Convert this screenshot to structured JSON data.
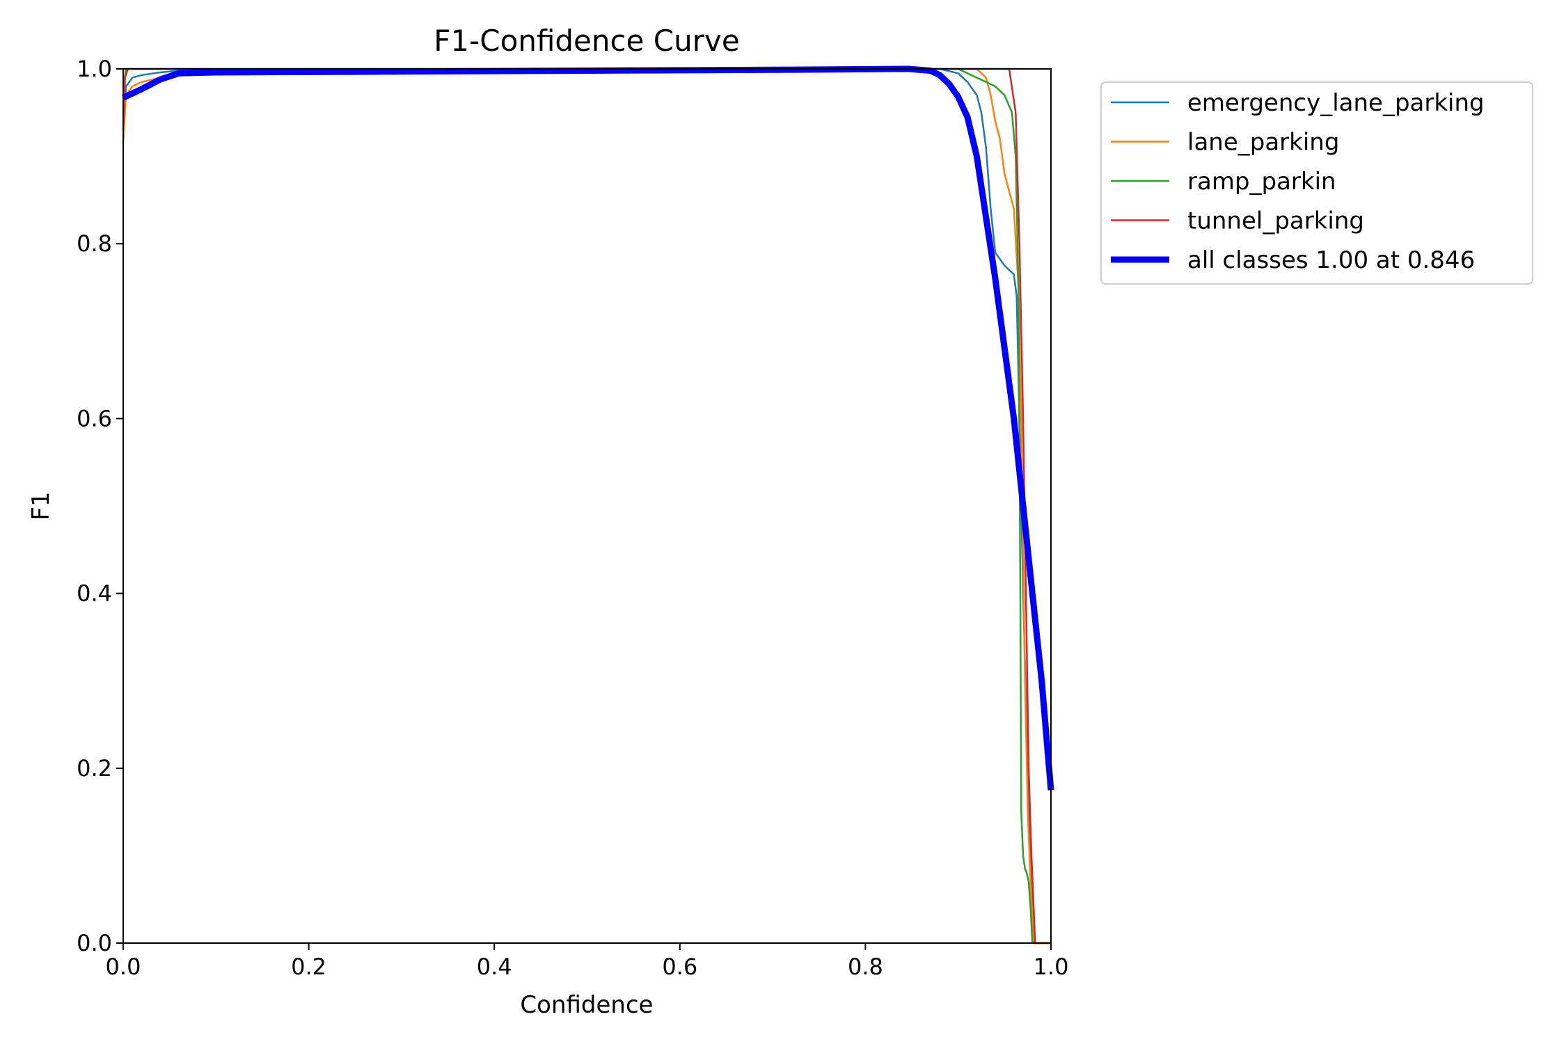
{
  "chart_data": {
    "type": "line",
    "title": "F1-Confidence Curve",
    "xlabel": "Confidence",
    "ylabel": "F1",
    "xlim": [
      0,
      1
    ],
    "ylim": [
      0,
      1
    ],
    "xticks": [
      "0.0",
      "0.2",
      "0.4",
      "0.6",
      "0.8",
      "1.0"
    ],
    "yticks": [
      "0.0",
      "0.2",
      "0.4",
      "0.6",
      "0.8",
      "1.0"
    ],
    "grid": false,
    "legend_position": "outside-top-right",
    "series": [
      {
        "name": "emergency_lane_parking",
        "color": "#1f77b4",
        "x": [
          0.0,
          0.003,
          0.01,
          0.02,
          0.04,
          0.06,
          0.5,
          0.85,
          0.88,
          0.9,
          0.91,
          0.92,
          0.925,
          0.93,
          0.935,
          0.94,
          0.95,
          0.96,
          0.963,
          0.966,
          0.97,
          0.975,
          0.98,
          0.982,
          1.0
        ],
        "y": [
          0.915,
          0.98,
          0.99,
          0.993,
          0.996,
          0.998,
          1.0,
          1.0,
          1.0,
          0.995,
          0.985,
          0.97,
          0.95,
          0.91,
          0.84,
          0.79,
          0.775,
          0.765,
          0.74,
          0.6,
          0.4,
          0.2,
          0.05,
          0.0,
          0.0
        ]
      },
      {
        "name": "lane_parking",
        "color": "#ff7f0e",
        "x": [
          0.0,
          0.003,
          0.01,
          0.02,
          0.04,
          0.06,
          0.5,
          0.92,
          0.93,
          0.935,
          0.94,
          0.945,
          0.95,
          0.955,
          0.96,
          0.965,
          0.968,
          0.97,
          0.972,
          0.975,
          0.978,
          0.98,
          0.982,
          1.0
        ],
        "y": [
          0.915,
          0.97,
          0.98,
          0.985,
          0.99,
          0.995,
          1.0,
          1.0,
          0.99,
          0.97,
          0.94,
          0.92,
          0.88,
          0.86,
          0.84,
          0.75,
          0.6,
          0.45,
          0.3,
          0.15,
          0.07,
          0.03,
          0.0,
          0.0
        ]
      },
      {
        "name": "ramp_parkin",
        "color": "#2ca02c",
        "x": [
          0.0,
          0.003,
          0.01,
          0.03,
          0.06,
          0.5,
          0.9,
          0.91,
          0.92,
          0.93,
          0.94,
          0.95,
          0.958,
          0.962,
          0.965,
          0.967,
          0.968,
          0.97,
          0.972,
          0.974,
          0.976,
          0.978,
          0.98,
          1.0
        ],
        "y": [
          0.98,
          1.0,
          1.0,
          1.0,
          1.0,
          1.0,
          1.0,
          0.995,
          0.99,
          0.985,
          0.98,
          0.97,
          0.95,
          0.9,
          0.75,
          0.4,
          0.15,
          0.1,
          0.085,
          0.08,
          0.07,
          0.04,
          0.0,
          0.0
        ]
      },
      {
        "name": "tunnel_parking",
        "color": "#d62728",
        "x": [
          0.0,
          0.002,
          0.005,
          0.05,
          0.5,
          0.955,
          0.962,
          0.966,
          0.97,
          0.973,
          0.976,
          0.979,
          0.981,
          0.983,
          1.0
        ],
        "y": [
          0.93,
          0.99,
          1.0,
          1.0,
          1.0,
          1.0,
          0.95,
          0.8,
          0.6,
          0.4,
          0.2,
          0.1,
          0.05,
          0.0,
          0.0
        ]
      },
      {
        "name": "all classes 1.00 at 0.846",
        "color": "#0000ff",
        "bold": true,
        "x": [
          0.0,
          0.02,
          0.04,
          0.06,
          0.1,
          0.3,
          0.5,
          0.7,
          0.846,
          0.87,
          0.88,
          0.89,
          0.9,
          0.91,
          0.92,
          0.94,
          0.96,
          0.97,
          0.98,
          0.99,
          1.0
        ],
        "y": [
          0.967,
          0.977,
          0.988,
          0.995,
          0.996,
          0.997,
          0.998,
          0.999,
          1.0,
          0.998,
          0.993,
          0.983,
          0.968,
          0.945,
          0.9,
          0.76,
          0.6,
          0.5,
          0.4,
          0.3,
          0.175
        ]
      }
    ]
  }
}
